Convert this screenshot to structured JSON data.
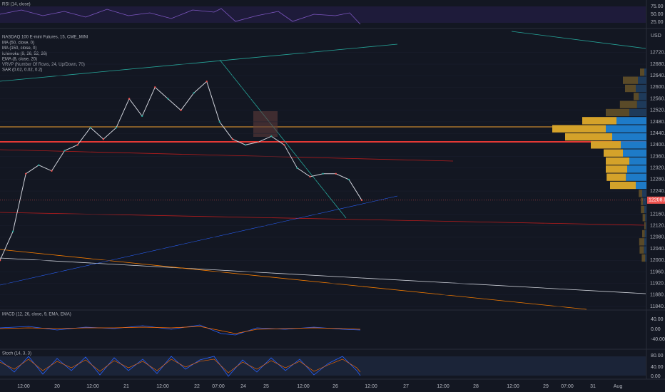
{
  "header": {
    "symbol": "NASDAQ 100 E-mini Futures, 15, CME_MINI",
    "currency": "USD"
  },
  "indicators": [
    "MA (50, close, 0)",
    "MA (150, close, 0)",
    "Ichimoku (9, 26, 52, 26)",
    "EMA (8, close, 20)",
    "VRVP (Number Of Rows, 24, Up/Down, 70)",
    "SAR (0.02, 0.02, 0.2)"
  ],
  "rsi": {
    "label": "RSI (14, close)",
    "ticks": [
      "75.00",
      "50.00",
      "25.00"
    ]
  },
  "macd": {
    "label": "MACD (12, 26, close, 9, EMA, EMA)",
    "ticks": [
      "40.00",
      "0.00",
      "-40.00"
    ]
  },
  "stoch": {
    "label": "Stoch (14, 3, 3)",
    "ticks": [
      "80.00",
      "40.00",
      "0.00"
    ]
  },
  "price_axis": {
    "ticks": [
      12720,
      12680,
      12640,
      12600,
      12560,
      12520,
      12480,
      12440,
      12400,
      12360,
      12320,
      12280,
      12240,
      12160,
      12120,
      12080,
      12040,
      12000,
      11960,
      11920,
      11880,
      11840
    ],
    "last_price": {
      "value": 12208.5,
      "label": "12208.50"
    }
  },
  "time_axis": [
    "12:00",
    "20",
    "12:00",
    "21",
    "12:00",
    "22",
    "07:00",
    "24",
    "25",
    "12:00",
    "26",
    "12:00",
    "27",
    "12:00",
    "28",
    "12:00",
    "29",
    "07:00",
    "31",
    "Aug"
  ],
  "price": {
    "values": [
      12000,
      12100,
      12300,
      12330,
      12310,
      12380,
      12400,
      12460,
      12420,
      12460,
      12560,
      12500,
      12600,
      12560,
      12520,
      12580,
      12620,
      12480,
      12420,
      12400,
      12410,
      12430,
      12400,
      12320,
      12290,
      12300,
      12300,
      12280,
      12208.5
    ]
  },
  "volume_profile": {
    "prices": [
      12652,
      12624,
      12596,
      12568,
      12540,
      12512,
      12484,
      12456,
      12428,
      12400,
      12372,
      12344,
      12316,
      12288,
      12260,
      12232,
      12204,
      12176,
      12148,
      12120,
      12092,
      12064,
      12036,
      12008
    ],
    "up": [
      5,
      20,
      25,
      18,
      22,
      40,
      70,
      95,
      80,
      60,
      55,
      40,
      45,
      48,
      25,
      10,
      8,
      5,
      3,
      2,
      4,
      5,
      6,
      3
    ],
    "down": [
      10,
      35,
      25,
      12,
      40,
      55,
      80,
      125,
      110,
      70,
      45,
      55,
      50,
      45,
      60,
      8,
      5,
      8,
      6,
      3,
      6,
      12,
      10,
      8
    ]
  }
}
